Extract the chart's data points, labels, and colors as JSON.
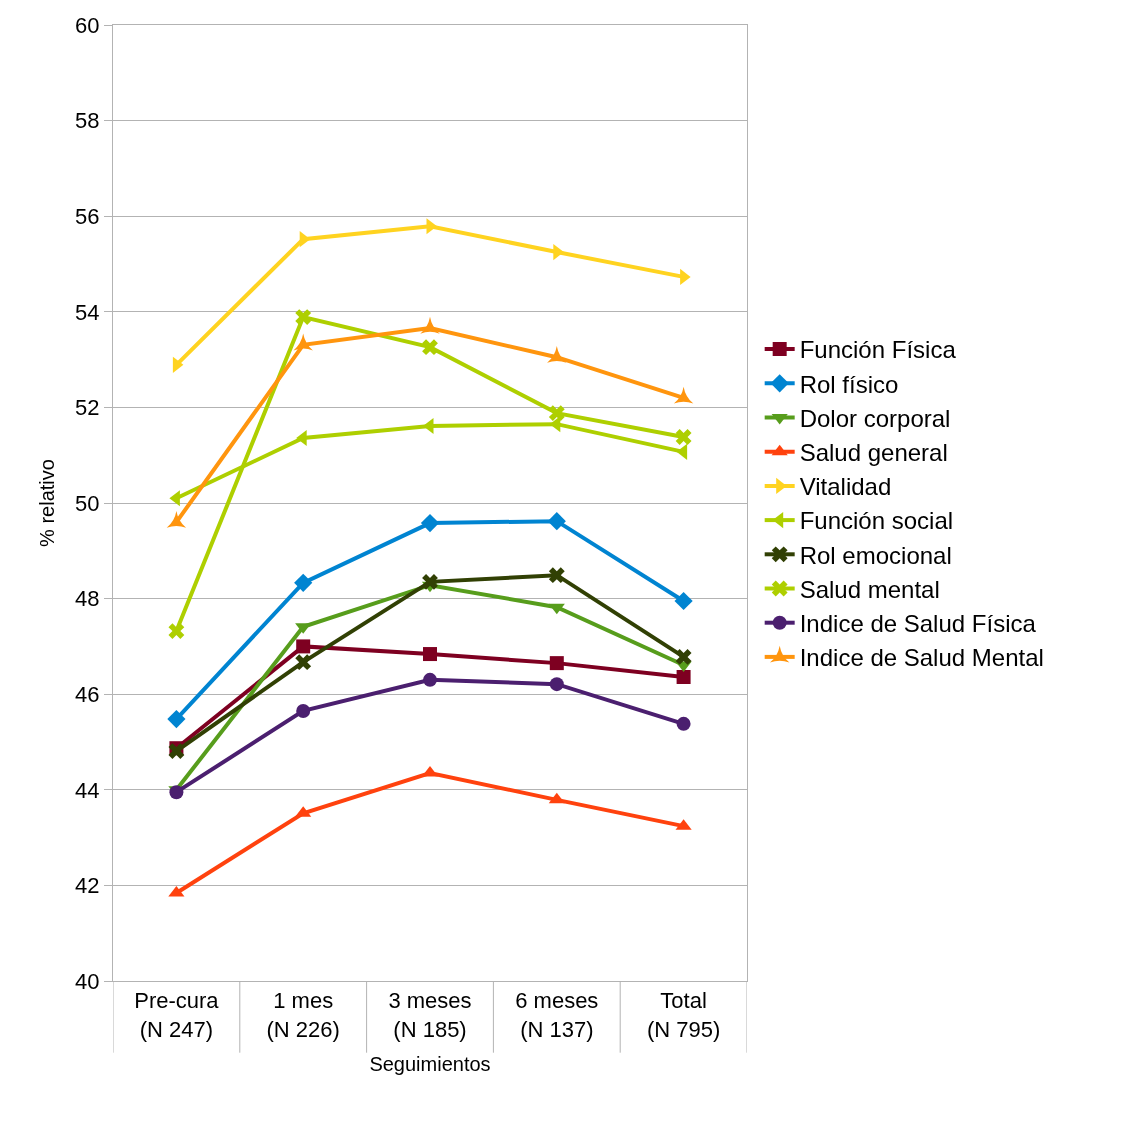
{
  "chart_data": {
    "type": "line",
    "xlabel": "Seguimientos",
    "ylabel": "% relativo",
    "categories": [
      "Pre-cura\n(N 247)",
      "1 mes\n(N 226)",
      "3 meses\n(N 185)",
      "6 meses\n(N 137)",
      "Total\n(N 795)"
    ],
    "ylim": [
      40,
      60
    ],
    "yticks": [
      40,
      42,
      44,
      46,
      48,
      50,
      52,
      54,
      56,
      58,
      60
    ],
    "grid": "y",
    "legend": "right",
    "series": [
      {
        "name": "Función Física",
        "color": "#7e0021",
        "marker": "square",
        "values": [
          44.87,
          47.0,
          46.84,
          46.65,
          46.36
        ]
      },
      {
        "name": "Rol físico",
        "color": "#0084d1",
        "marker": "diamond",
        "values": [
          45.48,
          48.33,
          49.58,
          49.62,
          47.95
        ]
      },
      {
        "name": "Dolor corporal",
        "color": "#579d1c",
        "marker": "triangle-down",
        "values": [
          44.0,
          47.41,
          48.28,
          47.82,
          46.61
        ]
      },
      {
        "name": "Salud general",
        "color": "#ff420e",
        "marker": "triangle-up",
        "values": [
          41.84,
          43.51,
          44.35,
          43.79,
          43.24
        ]
      },
      {
        "name": "Vitalidad",
        "color": "#ffd320",
        "marker": "triangle-right",
        "values": [
          52.89,
          55.52,
          55.79,
          55.25,
          54.73
        ]
      },
      {
        "name": "Función social",
        "color": "#aecf00",
        "marker": "triangle-left",
        "values": [
          50.1,
          51.36,
          51.61,
          51.65,
          51.07
        ]
      },
      {
        "name": "Rol emocional",
        "color": "#314004",
        "marker": "cross",
        "values": [
          44.81,
          46.67,
          48.35,
          48.49,
          46.78
        ]
      },
      {
        "name": "Salud mental",
        "color": "#aecf00",
        "marker": "cross",
        "values": [
          47.32,
          53.89,
          53.26,
          51.88,
          51.38
        ]
      },
      {
        "name": "Indice de Salud Física",
        "color": "#4b1f6f",
        "marker": "circle",
        "values": [
          43.95,
          45.65,
          46.3,
          46.21,
          45.38
        ]
      },
      {
        "name": "Indice de Salud Mental",
        "color": "#ff950e",
        "marker": "star",
        "values": [
          49.6,
          53.31,
          53.66,
          53.05,
          52.2
        ]
      }
    ]
  }
}
